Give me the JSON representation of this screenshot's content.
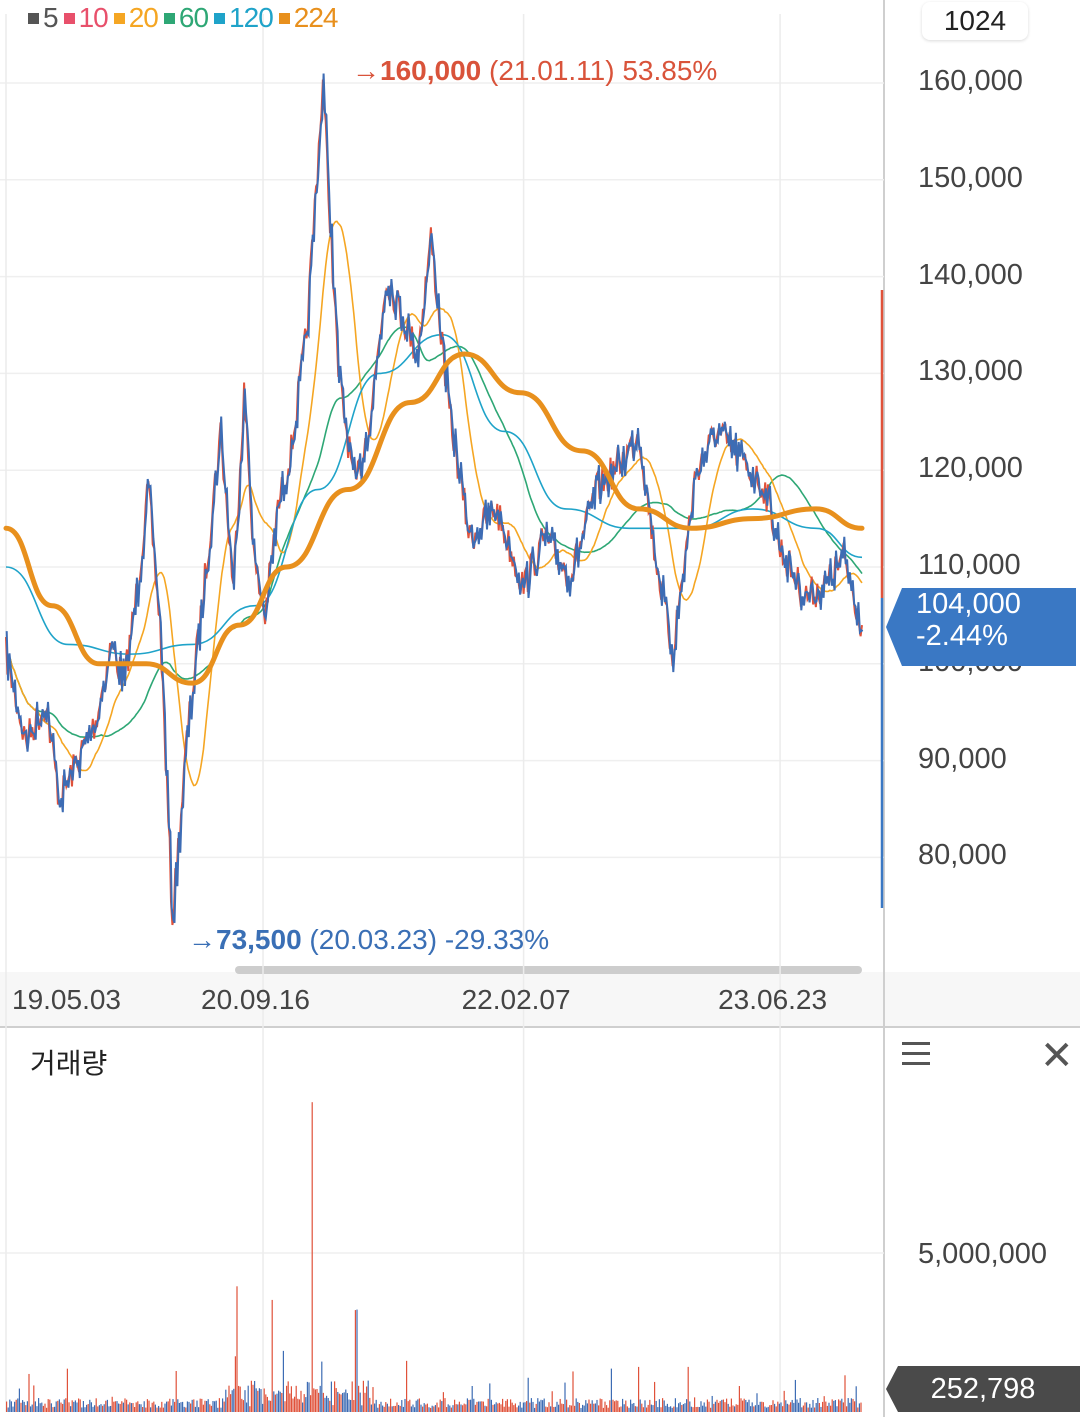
{
  "period_box": "1024",
  "legend": [
    {
      "label": "5",
      "color": "#555555"
    },
    {
      "label": "10",
      "color": "#e8506b"
    },
    {
      "label": "20",
      "color": "#f5a623"
    },
    {
      "label": "60",
      "color": "#2ea775"
    },
    {
      "label": "120",
      "color": "#1fa3c9"
    },
    {
      "label": "224",
      "color": "#e8901d"
    }
  ],
  "high_annotation": {
    "arrow": "→",
    "price": "160,000",
    "date": "(21.01.11)",
    "pct": "53.85%",
    "color": "#d9533a"
  },
  "low_annotation": {
    "arrow": "→",
    "price": "73,500",
    "date": "(20.03.23)",
    "pct": "-29.33%",
    "color": "#3a6fb5"
  },
  "current": {
    "price": "104,000",
    "change": "-2.44%"
  },
  "volume": {
    "title": "거래량",
    "tick": "5,000,000",
    "last": "252,798"
  },
  "chart_data": {
    "type": "line",
    "ylim": [
      70000,
      166000
    ],
    "yticks": [
      "160,000",
      "150,000",
      "140,000",
      "130,000",
      "120,000",
      "110,000",
      "100,000",
      "90,000",
      "80,000"
    ],
    "ytick_values": [
      160000,
      150000,
      140000,
      130000,
      120000,
      110000,
      100000,
      90000,
      80000
    ],
    "xtick_labels": [
      "19.05.03",
      "20.09.16",
      "22.02.07",
      "23.06.23"
    ],
    "x_range": [
      "2019-05-03",
      "2023-11-30"
    ],
    "x_ticks": [
      "2019-05-03",
      "2020-09-16",
      "2022-02-07",
      "2023-06-23"
    ],
    "price": [
      [
        "2019-05-03",
        101000
      ],
      [
        "2019-06-10",
        92000
      ],
      [
        "2019-07-20",
        96000
      ],
      [
        "2019-08-15",
        86000
      ],
      [
        "2019-09-20",
        90000
      ],
      [
        "2019-10-25",
        94000
      ],
      [
        "2019-11-25",
        102000
      ],
      [
        "2019-12-20",
        98000
      ],
      [
        "2020-01-15",
        108000
      ],
      [
        "2020-02-05",
        118000
      ],
      [
        "2020-02-28",
        104000
      ],
      [
        "2020-03-23",
        73500
      ],
      [
        "2020-04-20",
        92000
      ],
      [
        "2020-05-20",
        106000
      ],
      [
        "2020-06-25",
        124000
      ],
      [
        "2020-07-20",
        108000
      ],
      [
        "2020-08-10",
        128000
      ],
      [
        "2020-08-31",
        110000
      ],
      [
        "2020-09-20",
        105000
      ],
      [
        "2020-10-15",
        116000
      ],
      [
        "2020-11-10",
        122000
      ],
      [
        "2020-12-10",
        134000
      ],
      [
        "2021-01-11",
        160000
      ],
      [
        "2021-02-10",
        130000
      ],
      [
        "2021-03-15",
        118000
      ],
      [
        "2021-04-15",
        126000
      ],
      [
        "2021-05-15",
        140000
      ],
      [
        "2021-06-15",
        136000
      ],
      [
        "2021-07-15",
        132000
      ],
      [
        "2021-08-10",
        144000
      ],
      [
        "2021-09-15",
        126000
      ],
      [
        "2021-10-25",
        113000
      ],
      [
        "2021-12-15",
        116000
      ],
      [
        "2022-02-07",
        108000
      ],
      [
        "2022-03-20",
        113000
      ],
      [
        "2022-05-10",
        109000
      ],
      [
        "2022-06-30",
        118000
      ],
      [
        "2022-08-20",
        121000
      ],
      [
        "2022-09-20",
        124000
      ],
      [
        "2022-10-20",
        112000
      ],
      [
        "2022-11-25",
        101000
      ],
      [
        "2023-01-10",
        120000
      ],
      [
        "2023-02-20",
        124000
      ],
      [
        "2023-04-10",
        121000
      ],
      [
        "2023-05-25",
        118000
      ],
      [
        "2023-06-23",
        112000
      ],
      [
        "2023-08-10",
        107000
      ],
      [
        "2023-09-20",
        108000
      ],
      [
        "2023-10-25",
        111000
      ],
      [
        "2023-11-30",
        104000
      ]
    ],
    "ma_120": [
      [
        "2019-05-03",
        110000
      ],
      [
        "2019-09-01",
        102000
      ],
      [
        "2020-01-01",
        101000
      ],
      [
        "2020-05-01",
        102000
      ],
      [
        "2020-09-01",
        106000
      ],
      [
        "2021-01-01",
        118000
      ],
      [
        "2021-05-01",
        130000
      ],
      [
        "2021-09-01",
        134000
      ],
      [
        "2022-01-01",
        124000
      ],
      [
        "2022-05-01",
        116000
      ],
      [
        "2022-09-01",
        114000
      ],
      [
        "2023-01-01",
        114000
      ],
      [
        "2023-05-01",
        116000
      ],
      [
        "2023-09-01",
        114000
      ],
      [
        "2023-11-30",
        111000
      ]
    ],
    "ma_224": [
      [
        "2019-05-03",
        114000
      ],
      [
        "2019-08-01",
        106000
      ],
      [
        "2019-11-01",
        100000
      ],
      [
        "2020-02-01",
        100000
      ],
      [
        "2020-05-01",
        98000
      ],
      [
        "2020-08-01",
        104000
      ],
      [
        "2020-11-01",
        110000
      ],
      [
        "2021-03-01",
        118000
      ],
      [
        "2021-07-01",
        127000
      ],
      [
        "2021-10-15",
        132000
      ],
      [
        "2022-02-01",
        128000
      ],
      [
        "2022-06-01",
        122000
      ],
      [
        "2022-09-20",
        116000
      ],
      [
        "2023-01-01",
        114000
      ],
      [
        "2023-05-01",
        115000
      ],
      [
        "2023-09-01",
        116000
      ],
      [
        "2023-11-30",
        114000
      ]
    ]
  }
}
